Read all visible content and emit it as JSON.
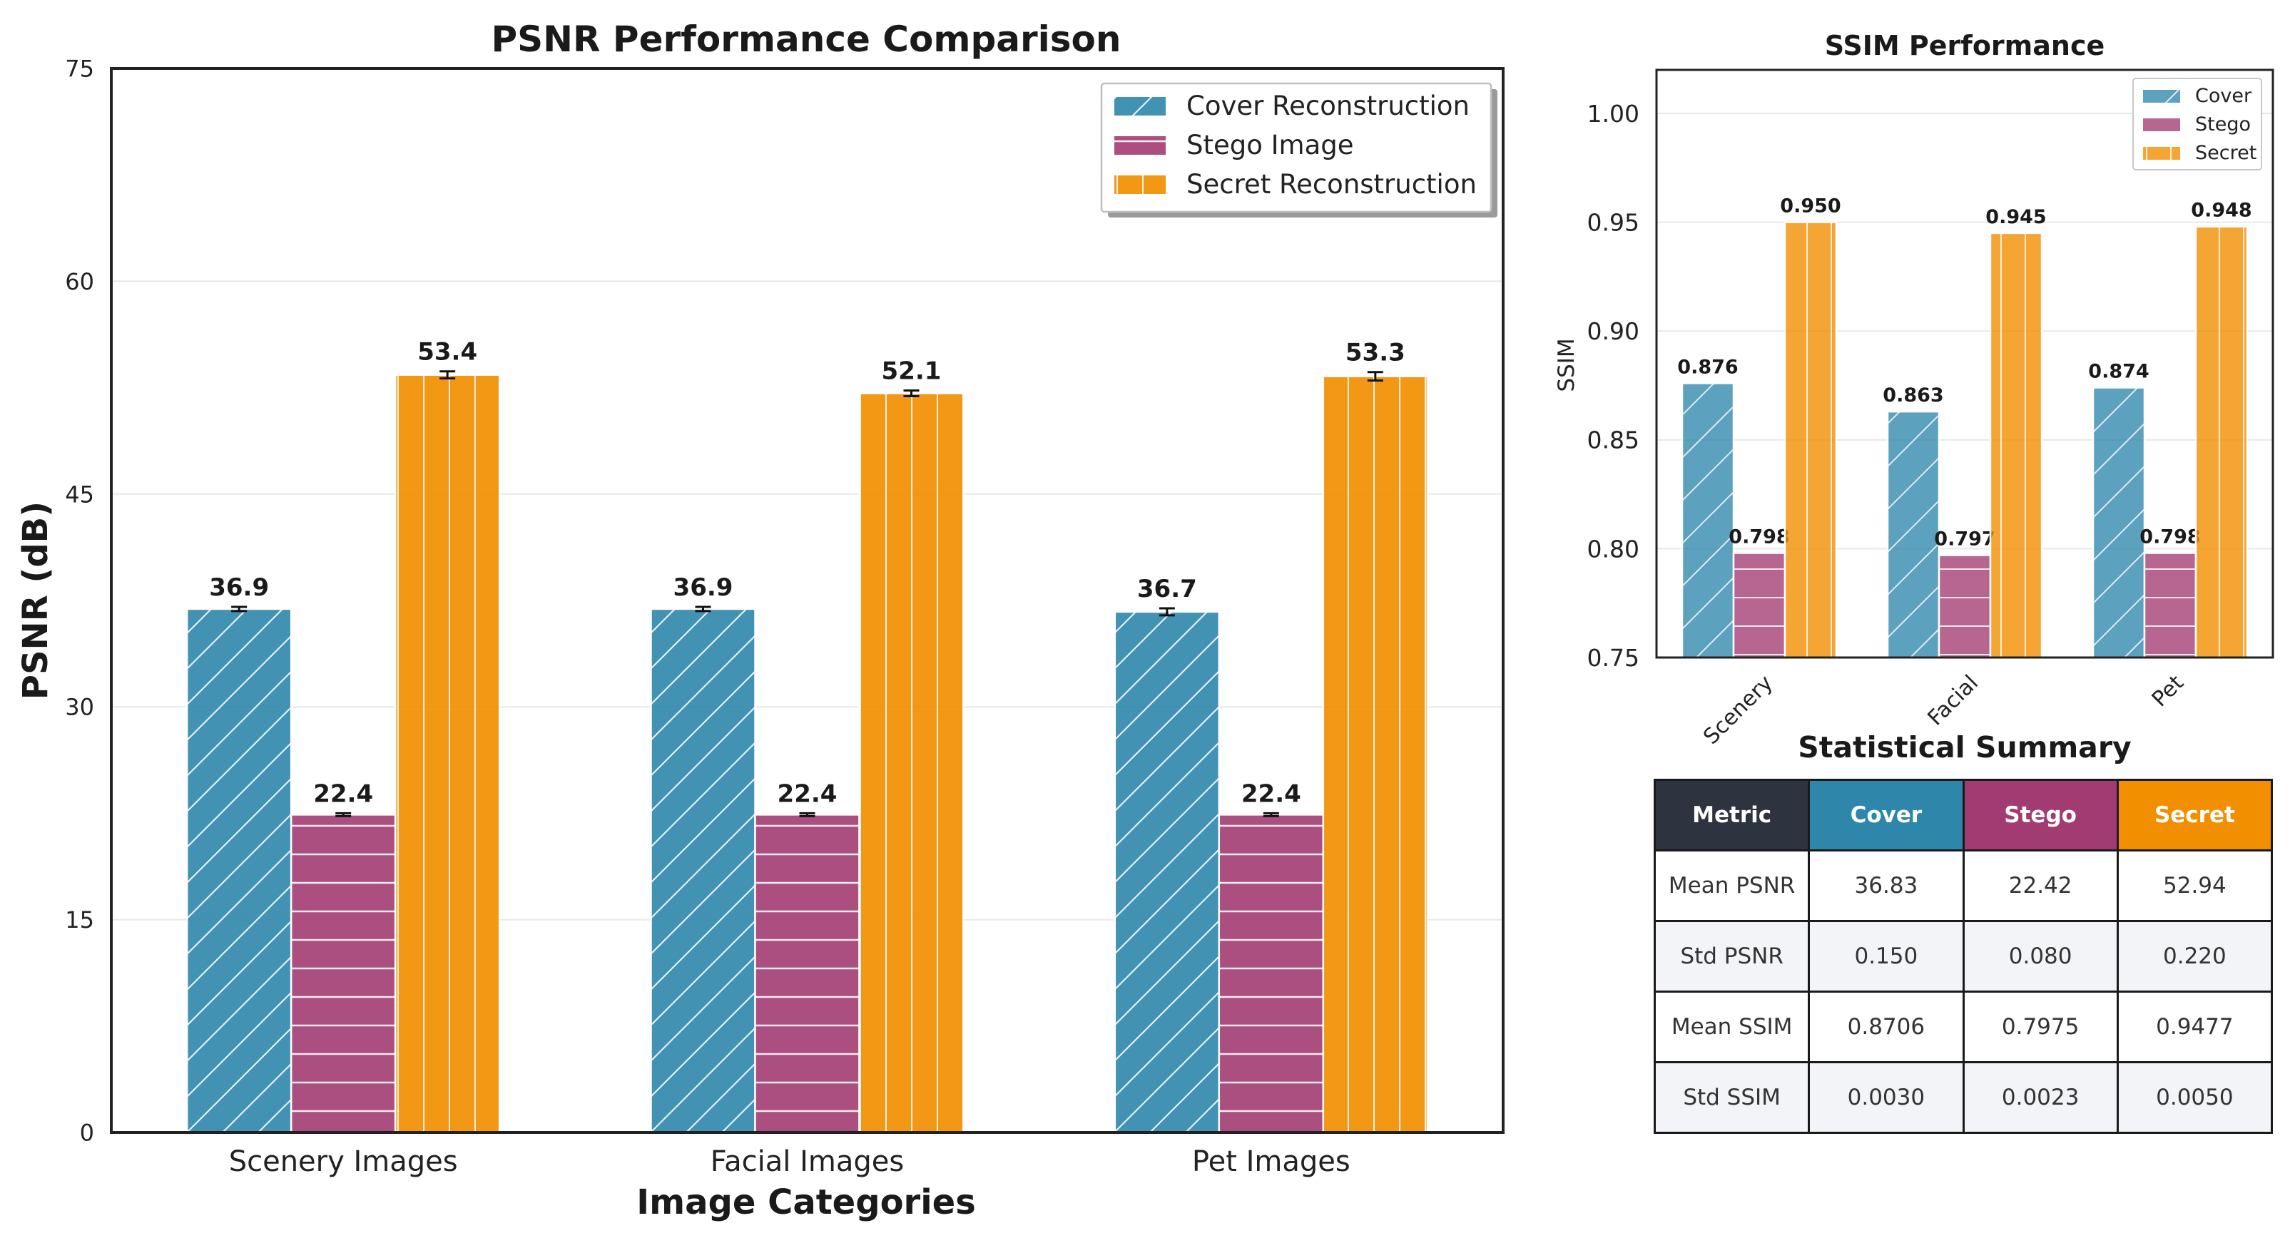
{
  "colors": {
    "cover": "#2E86AB",
    "stego": "#A23B72",
    "secret": "#F18F01",
    "header": "#2d3440",
    "axis": "#222222",
    "grid": "#e8e8e8"
  },
  "chart_data": [
    {
      "type": "bar",
      "title": "PSNR Performance Comparison",
      "xlabel": "Image Categories",
      "ylabel": "PSNR (dB)",
      "ylim": [
        0,
        75
      ],
      "yticks": [
        0,
        15,
        30,
        45,
        60,
        75
      ],
      "grid": true,
      "legend_position": "top-right",
      "categories": [
        "Scenery Images",
        "Facial Images",
        "Pet Images"
      ],
      "series": [
        {
          "name": "Cover Reconstruction",
          "key": "cover",
          "hatch": "diagonal",
          "values": [
            36.9,
            36.9,
            36.7
          ],
          "labels": [
            "36.9",
            "36.9",
            "36.7"
          ],
          "errors": [
            0.15,
            0.15,
            0.25
          ]
        },
        {
          "name": "Stego Image",
          "key": "stego",
          "hatch": "horizontal",
          "values": [
            22.4,
            22.4,
            22.4
          ],
          "labels": [
            "22.4",
            "22.4",
            "22.4"
          ],
          "errors": [
            0.1,
            0.1,
            0.1
          ]
        },
        {
          "name": "Secret Reconstruction",
          "key": "secret",
          "hatch": "vertical",
          "values": [
            53.4,
            52.1,
            53.3
          ],
          "labels": [
            "53.4",
            "52.1",
            "53.3"
          ],
          "errors": [
            0.25,
            0.2,
            0.3
          ]
        }
      ]
    },
    {
      "type": "bar",
      "title": "SSIM Performance",
      "xlabel": "",
      "ylabel": "SSIM",
      "ylim": [
        0.75,
        1.02
      ],
      "yticks": [
        0.75,
        0.8,
        0.85,
        0.9,
        0.95,
        1.0
      ],
      "ytick_labels": [
        "0.75",
        "0.80",
        "0.85",
        "0.90",
        "0.95",
        "1.00"
      ],
      "grid": true,
      "legend_position": "top-right",
      "categories": [
        "Scenery",
        "Facial",
        "Pet"
      ],
      "series": [
        {
          "name": "Cover",
          "key": "cover",
          "hatch": "diagonal",
          "values": [
            0.876,
            0.863,
            0.874
          ],
          "labels": [
            "0.876",
            "0.863",
            "0.874"
          ]
        },
        {
          "name": "Stego",
          "key": "stego",
          "hatch": "horizontal",
          "values": [
            0.798,
            0.797,
            0.798
          ],
          "labels": [
            "0.798",
            "0.797",
            "0.798"
          ]
        },
        {
          "name": "Secret",
          "key": "secret",
          "hatch": "vertical",
          "values": [
            0.95,
            0.945,
            0.948
          ],
          "labels": [
            "0.950",
            "0.945",
            "0.948"
          ]
        }
      ]
    }
  ],
  "summary": {
    "title": "Statistical Summary",
    "headers": [
      "Metric",
      "Cover",
      "Stego",
      "Secret"
    ],
    "rows": [
      [
        "Mean PSNR",
        "36.83",
        "22.42",
        "52.94"
      ],
      [
        "Std PSNR",
        "0.150",
        "0.080",
        "0.220"
      ],
      [
        "Mean SSIM",
        "0.8706",
        "0.7975",
        "0.9477"
      ],
      [
        "Std SSIM",
        "0.0030",
        "0.0023",
        "0.0050"
      ]
    ]
  }
}
